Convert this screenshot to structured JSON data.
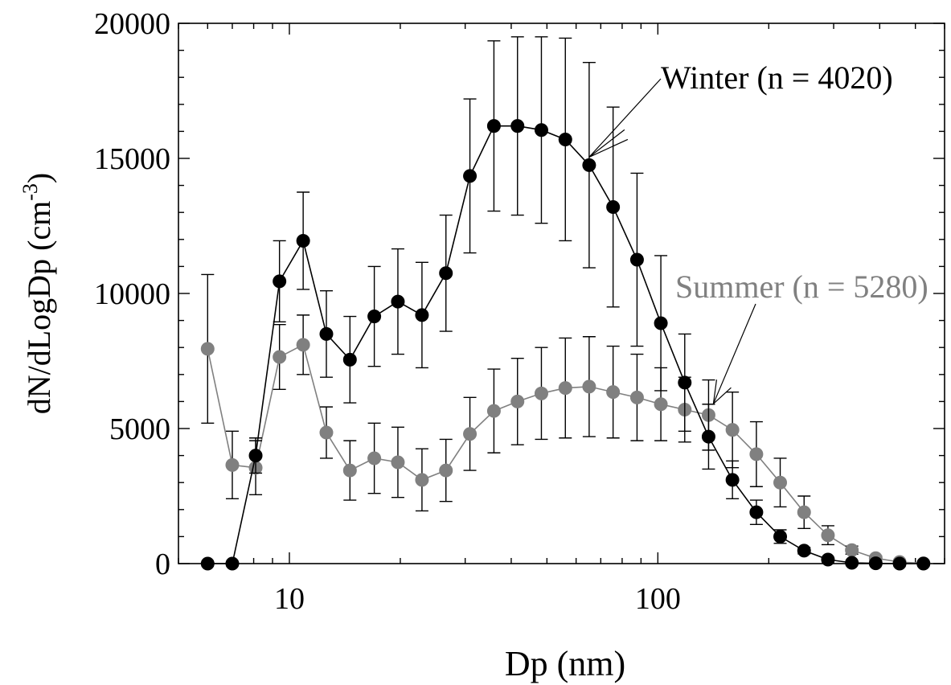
{
  "chart_data": {
    "type": "scatter",
    "xlabel": "Dp (nm)",
    "ylabel": "dN/dLogDp (cm",
    "ylabel_sup": "-3",
    "ylabel_close": ")",
    "x_scale": "log",
    "xlim": [
      5,
      600
    ],
    "ylim": [
      0,
      20000
    ],
    "x_tick_labels": [
      {
        "value": 10,
        "label": "10"
      },
      {
        "value": 100,
        "label": "100"
      }
    ],
    "y_tick_labels": [
      {
        "value": 0,
        "label": "0"
      },
      {
        "value": 5000,
        "label": "5000"
      },
      {
        "value": 10000,
        "label": "10000"
      },
      {
        "value": 15000,
        "label": "15000"
      },
      {
        "value": 20000,
        "label": "20000"
      }
    ],
    "grid": false,
    "legend": "annotations with arrows",
    "series": [
      {
        "name": "Winter (n = 4020)",
        "color": "#000000",
        "points": [
          {
            "x": 6.0,
            "y": 0,
            "err": 0
          },
          {
            "x": 7.0,
            "y": 0,
            "err": 0
          },
          {
            "x": 8.1,
            "y": 4000,
            "err": 650
          },
          {
            "x": 9.4,
            "y": 10450,
            "err": 1500
          },
          {
            "x": 10.9,
            "y": 11950,
            "err": 1800
          },
          {
            "x": 12.6,
            "y": 8500,
            "err": 1600
          },
          {
            "x": 14.6,
            "y": 7550,
            "err": 1600
          },
          {
            "x": 17.0,
            "y": 9150,
            "err": 1850
          },
          {
            "x": 19.7,
            "y": 9700,
            "err": 1950
          },
          {
            "x": 22.9,
            "y": 9200,
            "err": 1950
          },
          {
            "x": 26.6,
            "y": 10750,
            "err": 2150
          },
          {
            "x": 30.9,
            "y": 14350,
            "err": 2850
          },
          {
            "x": 35.9,
            "y": 16200,
            "err": 3150
          },
          {
            "x": 41.6,
            "y": 16200,
            "err": 3300
          },
          {
            "x": 48.3,
            "y": 16050,
            "err": 3450
          },
          {
            "x": 56.1,
            "y": 15700,
            "err": 3750
          },
          {
            "x": 65.1,
            "y": 14750,
            "err": 3800
          },
          {
            "x": 75.6,
            "y": 13200,
            "err": 3700
          },
          {
            "x": 87.8,
            "y": 11250,
            "err": 3200
          },
          {
            "x": 101.9,
            "y": 8900,
            "err": 2500
          },
          {
            "x": 118.3,
            "y": 6700,
            "err": 1800
          },
          {
            "x": 137.3,
            "y": 4700,
            "err": 1200
          },
          {
            "x": 159.4,
            "y": 3100,
            "err": 700
          },
          {
            "x": 185.1,
            "y": 1900,
            "err": 450
          },
          {
            "x": 214.8,
            "y": 1000,
            "err": 250
          },
          {
            "x": 249.4,
            "y": 480,
            "err": 120
          },
          {
            "x": 289.5,
            "y": 150,
            "err": 60
          },
          {
            "x": 336.1,
            "y": 30,
            "err": 0
          },
          {
            "x": 390.2,
            "y": 10,
            "err": 0
          },
          {
            "x": 453.0,
            "y": 0,
            "err": 0
          },
          {
            "x": 525.9,
            "y": 0,
            "err": 0
          }
        ]
      },
      {
        "name": "Summer (n = 5280)",
        "color": "#808080",
        "points": [
          {
            "x": 6.0,
            "y": 7950,
            "err": 2750
          },
          {
            "x": 7.0,
            "y": 3650,
            "err": 1250
          },
          {
            "x": 8.1,
            "y": 3550,
            "err": 1000
          },
          {
            "x": 9.4,
            "y": 7650,
            "err": 1200
          },
          {
            "x": 10.9,
            "y": 8100,
            "err": 1100
          },
          {
            "x": 12.6,
            "y": 4850,
            "err": 950
          },
          {
            "x": 14.6,
            "y": 3450,
            "err": 1100
          },
          {
            "x": 17.0,
            "y": 3900,
            "err": 1300
          },
          {
            "x": 19.7,
            "y": 3750,
            "err": 1300
          },
          {
            "x": 22.9,
            "y": 3100,
            "err": 1150
          },
          {
            "x": 26.6,
            "y": 3450,
            "err": 1150
          },
          {
            "x": 30.9,
            "y": 4800,
            "err": 1350
          },
          {
            "x": 35.9,
            "y": 5650,
            "err": 1550
          },
          {
            "x": 41.6,
            "y": 6000,
            "err": 1600
          },
          {
            "x": 48.3,
            "y": 6300,
            "err": 1700
          },
          {
            "x": 56.1,
            "y": 6500,
            "err": 1850
          },
          {
            "x": 65.1,
            "y": 6550,
            "err": 1850
          },
          {
            "x": 75.6,
            "y": 6350,
            "err": 1700
          },
          {
            "x": 87.8,
            "y": 6150,
            "err": 1600
          },
          {
            "x": 101.9,
            "y": 5900,
            "err": 1350
          },
          {
            "x": 118.3,
            "y": 5700,
            "err": 1200
          },
          {
            "x": 137.3,
            "y": 5500,
            "err": 1300
          },
          {
            "x": 159.4,
            "y": 4950,
            "err": 1400
          },
          {
            "x": 185.1,
            "y": 4050,
            "err": 1200
          },
          {
            "x": 214.8,
            "y": 3000,
            "err": 900
          },
          {
            "x": 249.4,
            "y": 1900,
            "err": 600
          },
          {
            "x": 289.5,
            "y": 1050,
            "err": 350
          },
          {
            "x": 336.1,
            "y": 500,
            "err": 150
          },
          {
            "x": 390.2,
            "y": 200,
            "err": 80
          },
          {
            "x": 453.0,
            "y": 60,
            "err": 0
          },
          {
            "x": 525.9,
            "y": 10,
            "err": 0
          }
        ]
      }
    ],
    "annotations": [
      {
        "text": "Winter (n = 4020)",
        "series": 0,
        "target_x": 65.1,
        "target_y": 14750
      },
      {
        "text": "Summer (n = 5280)",
        "series": 1,
        "target_x": 137.3,
        "target_y": 5500
      }
    ]
  }
}
